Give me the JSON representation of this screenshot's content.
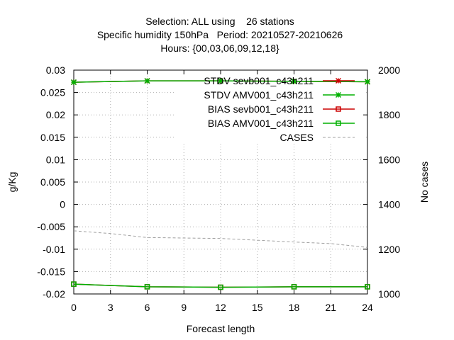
{
  "chart_data": {
    "type": "line",
    "title_lines": [
      "Selection: ALL using    26 stations",
      "Specific humidity 150hPa   Period: 20210527-20210626",
      "Hours: {00,03,06,09,12,18}"
    ],
    "xlabel": "Forecast length",
    "ylabel": "g/Kg",
    "y2label": "No cases",
    "xlim": [
      0,
      24
    ],
    "ylim": [
      -0.02,
      0.03
    ],
    "y2lim": [
      1000,
      2000
    ],
    "xticks": [
      "0",
      "3",
      "6",
      "9",
      "12",
      "15",
      "18",
      "21",
      "24"
    ],
    "yticks": [
      "-0.02",
      "-0.015",
      "-0.01",
      "-0.005",
      "0",
      "0.005",
      "0.01",
      "0.015",
      "0.02",
      "0.025",
      "0.03"
    ],
    "y2ticks": [
      "1000",
      "1200",
      "1400",
      "1600",
      "1800",
      "2000"
    ],
    "grid": true,
    "legend_position": "top-right",
    "series": [
      {
        "name": "STDV sevb001_c43h211",
        "axis": "y",
        "color": "#cc0000",
        "marker": "star",
        "x": [
          0,
          6,
          12,
          18,
          24
        ],
        "values": [
          0.0273,
          0.0276,
          0.0276,
          0.0275,
          0.0274
        ]
      },
      {
        "name": "STDV AMV001_c43h211",
        "axis": "y",
        "color": "#00b000",
        "marker": "star",
        "x": [
          0,
          6,
          12,
          18,
          24
        ],
        "values": [
          0.0273,
          0.0276,
          0.0276,
          0.0275,
          0.0274
        ]
      },
      {
        "name": "BIAS sevb001_c43h211",
        "axis": "y",
        "color": "#cc0000",
        "marker": "square",
        "x": [
          0,
          6,
          12,
          18,
          24
        ],
        "values": [
          -0.0178,
          -0.0184,
          -0.0185,
          -0.0184,
          -0.0184
        ]
      },
      {
        "name": "BIAS AMV001_c43h211",
        "axis": "y",
        "color": "#00b000",
        "marker": "square",
        "x": [
          0,
          6,
          12,
          18,
          24
        ],
        "values": [
          -0.0178,
          -0.0184,
          -0.0185,
          -0.0184,
          -0.0184
        ]
      },
      {
        "name": "CASES",
        "axis": "y2",
        "color": "#a0a0a0",
        "marker": "none",
        "dash": true,
        "x": [
          0,
          3,
          6,
          9,
          12,
          15,
          18,
          21,
          24
        ],
        "values": [
          1282,
          1270,
          1252,
          1250,
          1248,
          1240,
          1232,
          1225,
          1208
        ]
      }
    ]
  }
}
